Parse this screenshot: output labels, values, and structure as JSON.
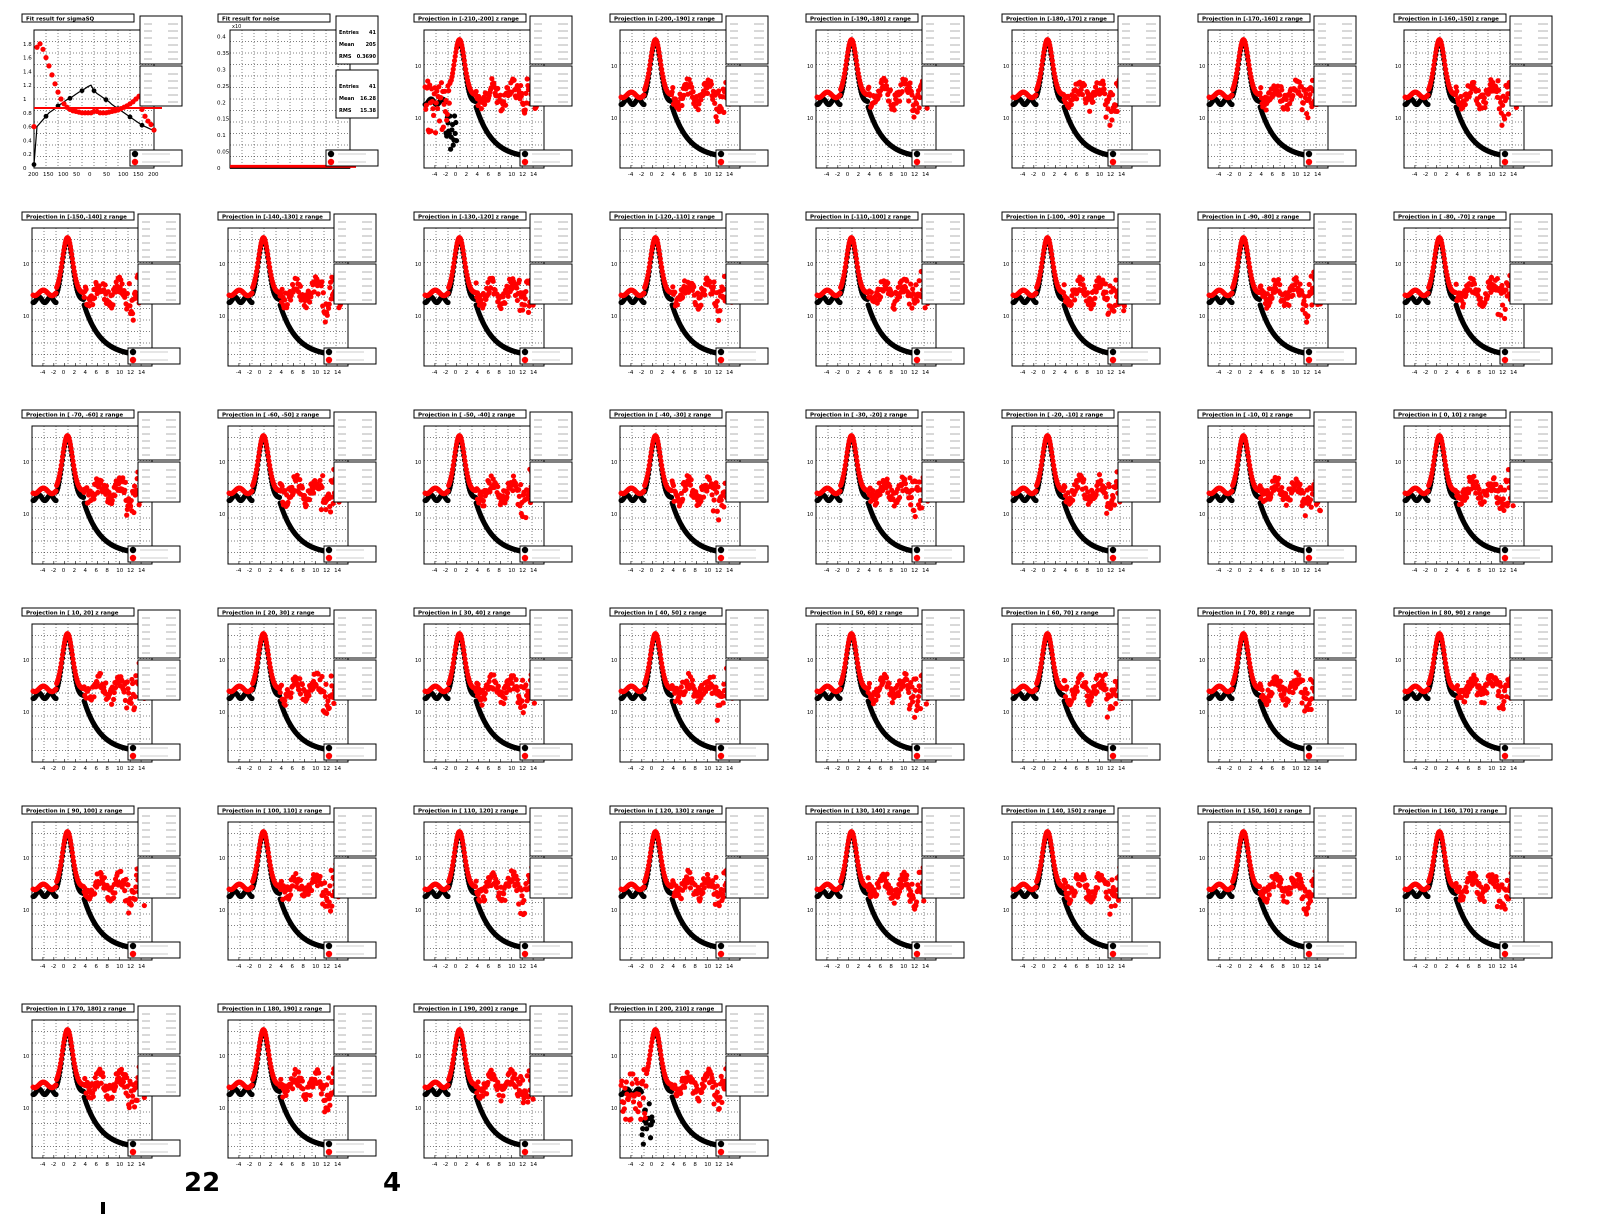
{
  "colors": {
    "series_a": "#000000",
    "series_b": "#ff0000",
    "frame": "#000000",
    "grid": "#000000",
    "background": "#ffffff"
  },
  "stray_text": [
    "22",
    "4"
  ],
  "chart_data": [
    {
      "type": "scatter",
      "title": "Fit result for sigmaSQ",
      "x_ticks": [
        "200",
        "150",
        "100",
        "50",
        "0",
        "50",
        "100",
        "150",
        "200"
      ],
      "y_ticks": [
        "0",
        "0.2",
        "0.4",
        "0.6",
        "0.8",
        "1",
        "1.2",
        "1.4",
        "1.6",
        "1.8"
      ],
      "xlim": [
        -200,
        200
      ],
      "ylim": [
        0,
        2
      ],
      "series": [
        {
          "x": [
            -200,
            -190,
            -180,
            -170,
            -160,
            -150,
            -140,
            -130,
            -120,
            -110,
            -100,
            -90,
            -80,
            -70,
            -60,
            -50,
            -40,
            -30,
            -20,
            -10,
            0,
            10,
            20,
            30,
            40,
            50,
            60,
            70,
            80,
            90,
            100,
            110,
            120,
            130,
            140,
            150,
            160,
            170,
            180,
            190,
            200
          ],
          "y": [
            0.05,
            0.6,
            0.65,
            0.7,
            0.75,
            0.8,
            0.83,
            0.86,
            0.9,
            0.93,
            0.96,
            0.99,
            1.01,
            1.04,
            1.07,
            1.1,
            1.12,
            1.15,
            1.18,
            1.2,
            1.12,
            1.08,
            1.05,
            1.02,
            0.99,
            0.96,
            0.92,
            0.89,
            0.86,
            0.83,
            0.8,
            0.77,
            0.74,
            0.71,
            0.68,
            0.65,
            0.62,
            0.6,
            0.58,
            0.56,
            0.55
          ]
        },
        {
          "x": [
            -200,
            -190,
            -180,
            -170,
            -160,
            -150,
            -140,
            -130,
            -120,
            -110,
            -100,
            -90,
            -80,
            -70,
            -60,
            -50,
            -40,
            -30,
            -20,
            -10,
            0,
            10,
            20,
            30,
            40,
            50,
            60,
            70,
            80,
            90,
            100,
            110,
            120,
            130,
            140,
            150,
            160,
            170,
            180,
            190,
            200
          ],
          "y": [
            0.6,
            1.75,
            1.8,
            1.72,
            1.6,
            1.48,
            1.35,
            1.22,
            1.1,
            1.0,
            0.93,
            0.88,
            0.85,
            0.83,
            0.82,
            0.81,
            0.8,
            0.8,
            0.8,
            0.8,
            0.82,
            0.82,
            0.8,
            0.8,
            0.8,
            0.81,
            0.82,
            0.83,
            0.84,
            0.86,
            0.88,
            0.9,
            0.93,
            0.96,
            1.0,
            1.04,
            0.85,
            0.75,
            0.68,
            0.63,
            0.55
          ]
        }
      ],
      "hline": 0.87
    },
    {
      "type": "scatter",
      "title": "Fit result for noise",
      "x10": "x10",
      "y_ticks": [
        "0",
        "0.05",
        "0.1",
        "0.15",
        "0.2",
        "0.25",
        "0.3",
        "0.35",
        "0.4"
      ],
      "ylim": [
        0,
        0.42
      ],
      "stats": [
        {
          "rows": [
            [
              "Entries",
              "41"
            ],
            [
              "Mean",
              "205"
            ],
            [
              "RMS",
              "0.3690"
            ]
          ]
        },
        {
          "rows": [
            [
              "Entries",
              "41"
            ],
            [
              "Mean",
              "16.28"
            ],
            [
              "RMS",
              "15.38"
            ]
          ]
        }
      ],
      "series": [
        {
          "y": [
            0.004
          ]
        },
        {
          "y": [
            0.002
          ]
        }
      ]
    },
    {
      "type": "line",
      "title": "Projection in [-210,-200] z range",
      "variant": "edge"
    },
    {
      "type": "line",
      "title": "Projection in [-200,-190] z range"
    },
    {
      "type": "line",
      "title": "Projection in [-190,-180] z range"
    },
    {
      "type": "line",
      "title": "Projection in [-180,-170] z range"
    },
    {
      "type": "line",
      "title": "Projection in [-170,-160] z range"
    },
    {
      "type": "line",
      "title": "Projection in [-160,-150] z range"
    },
    {
      "type": "line",
      "title": "Projection in [-150,-140] z range"
    },
    {
      "type": "line",
      "title": "Projection in [-140,-130] z range"
    },
    {
      "type": "line",
      "title": "Projection in [-130,-120] z range"
    },
    {
      "type": "line",
      "title": "Projection in [-120,-110] z range"
    },
    {
      "type": "line",
      "title": "Projection in [-110,-100] z range"
    },
    {
      "type": "line",
      "title": "Projection in [-100, -90] z range"
    },
    {
      "type": "line",
      "title": "Projection in [ -90, -80] z range"
    },
    {
      "type": "line",
      "title": "Projection in [ -80, -70] z range"
    },
    {
      "type": "line",
      "title": "Projection in [ -70, -60] z range"
    },
    {
      "type": "line",
      "title": "Projection in [ -60, -50] z range"
    },
    {
      "type": "line",
      "title": "Projection in [ -50, -40] z range"
    },
    {
      "type": "line",
      "title": "Projection in [ -40, -30] z range"
    },
    {
      "type": "line",
      "title": "Projection in [ -30, -20] z range"
    },
    {
      "type": "line",
      "title": "Projection in [ -20, -10] z range"
    },
    {
      "type": "line",
      "title": "Projection in [ -10,   0] z range"
    },
    {
      "type": "line",
      "title": "Projection in [   0,  10] z range"
    },
    {
      "type": "line",
      "title": "Projection in [  10,  20] z range"
    },
    {
      "type": "line",
      "title": "Projection in [  20,  30] z range"
    },
    {
      "type": "line",
      "title": "Projection in [  30,  40] z range"
    },
    {
      "type": "line",
      "title": "Projection in [  40,  50] z range"
    },
    {
      "type": "line",
      "title": "Projection in [  50,  60] z range"
    },
    {
      "type": "line",
      "title": "Projection in [  60,  70] z range"
    },
    {
      "type": "line",
      "title": "Projection in [  70,  80] z range"
    },
    {
      "type": "line",
      "title": "Projection in [  80,  90] z range"
    },
    {
      "type": "line",
      "title": "Projection in [  90, 100] z range"
    },
    {
      "type": "line",
      "title": "Projection in [ 100, 110] z range"
    },
    {
      "type": "line",
      "title": "Projection in [ 110, 120] z range"
    },
    {
      "type": "line",
      "title": "Projection in [ 120, 130] z range"
    },
    {
      "type": "line",
      "title": "Projection in [ 130, 140] z range"
    },
    {
      "type": "line",
      "title": "Projection in [ 140, 150] z range"
    },
    {
      "type": "line",
      "title": "Projection in [ 150, 160] z range"
    },
    {
      "type": "line",
      "title": "Projection in [ 160, 170] z range"
    },
    {
      "type": "line",
      "title": "Projection in [ 170, 180] z range"
    },
    {
      "type": "line",
      "title": "Projection in [ 180, 190] z range"
    },
    {
      "type": "line",
      "title": "Projection in [ 190, 200] z range"
    },
    {
      "type": "line",
      "title": "Projection in [ 200, 210] z range",
      "variant": "edge"
    }
  ],
  "projection_common": {
    "x_ticks": [
      "-4",
      "-2",
      "0",
      "2",
      "4",
      "6",
      "8",
      "10",
      "12",
      "14"
    ],
    "xlim": [
      -6,
      16
    ],
    "y_ticks": [
      "10-1",
      "10-2"
    ]
  }
}
